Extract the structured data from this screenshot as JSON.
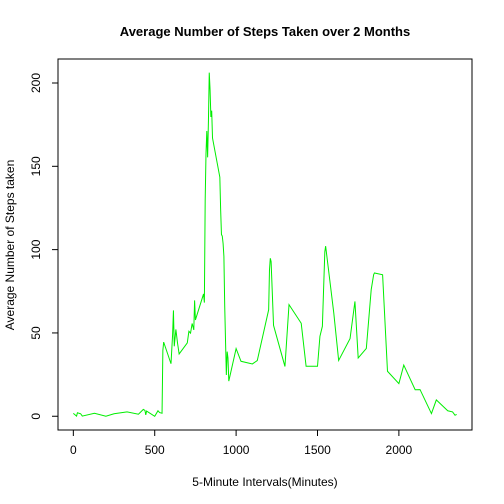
{
  "chart_data": {
    "type": "line",
    "title": "Average Number of Steps Taken over 2 Months",
    "x_label": "5-Minute Intervals(Minutes)",
    "y_label": "Average Number of Steps taken",
    "color": "#00ee00",
    "xlim": [
      -94.2,
      2449.2
    ],
    "ylim": [
      -8.25,
      214.4
    ],
    "xticks": [
      0,
      500,
      1000,
      1500,
      2000
    ],
    "yticks": [
      0,
      50,
      100,
      150,
      200
    ],
    "x": [
      0,
      20,
      25,
      45,
      55,
      130,
      200,
      250,
      330,
      400,
      430,
      440,
      445,
      450,
      500,
      520,
      530,
      545,
      550,
      555,
      600,
      610,
      615,
      620,
      630,
      640,
      650,
      700,
      710,
      720,
      730,
      740,
      745,
      750,
      800,
      805,
      810,
      815,
      820,
      825,
      830,
      835,
      840,
      845,
      850,
      855,
      900,
      905,
      910,
      915,
      920,
      925,
      930,
      935,
      940,
      945,
      950,
      955,
      1000,
      1030,
      1100,
      1130,
      1200,
      1205,
      1210,
      1215,
      1230,
      1300,
      1325,
      1400,
      1430,
      1500,
      1515,
      1530,
      1545,
      1550,
      1600,
      1630,
      1700,
      1730,
      1750,
      1800,
      1830,
      1845,
      1850,
      1900,
      1930,
      2000,
      2030,
      2100,
      2130,
      2200,
      2230,
      2300,
      2330,
      2345,
      2355
    ],
    "series": [
      {
        "name": "steps",
        "values": [
          1.7,
          0.1,
          2.1,
          1.5,
          0.1,
          1.8,
          0,
          1.5,
          2.6,
          1.2,
          4.1,
          3.5,
          0.8,
          3.1,
          0,
          3.3,
          2.2,
          1.8,
          39.5,
          44.5,
          31.5,
          49.3,
          63.5,
          42,
          52.1,
          44,
          37.4,
          44,
          51,
          49.9,
          55.7,
          51.8,
          69.5,
          57.8,
          73.4,
          68.2,
          129.4,
          157.5,
          171.2,
          155.4,
          177.3,
          206.2,
          195.9,
          179.6,
          183.4,
          167,
          143.5,
          124,
          109.1,
          108.1,
          103.7,
          95.96,
          66.2,
          45.2,
          24.8,
          38.8,
          34.98,
          21.1,
          40.6,
          33,
          31.4,
          33.4,
          63.9,
          87.7,
          94.8,
          92.8,
          54.5,
          29.9,
          67,
          55.8,
          30,
          30,
          48,
          54,
          98.7,
          102.1,
          62,
          33.5,
          46.6,
          68.9,
          35,
          40.7,
          76,
          85,
          86,
          84.9,
          27,
          19.6,
          30.7,
          15.9,
          16,
          1.6,
          9.8,
          3.3,
          2.6,
          0.6,
          1.1
        ]
      }
    ]
  }
}
